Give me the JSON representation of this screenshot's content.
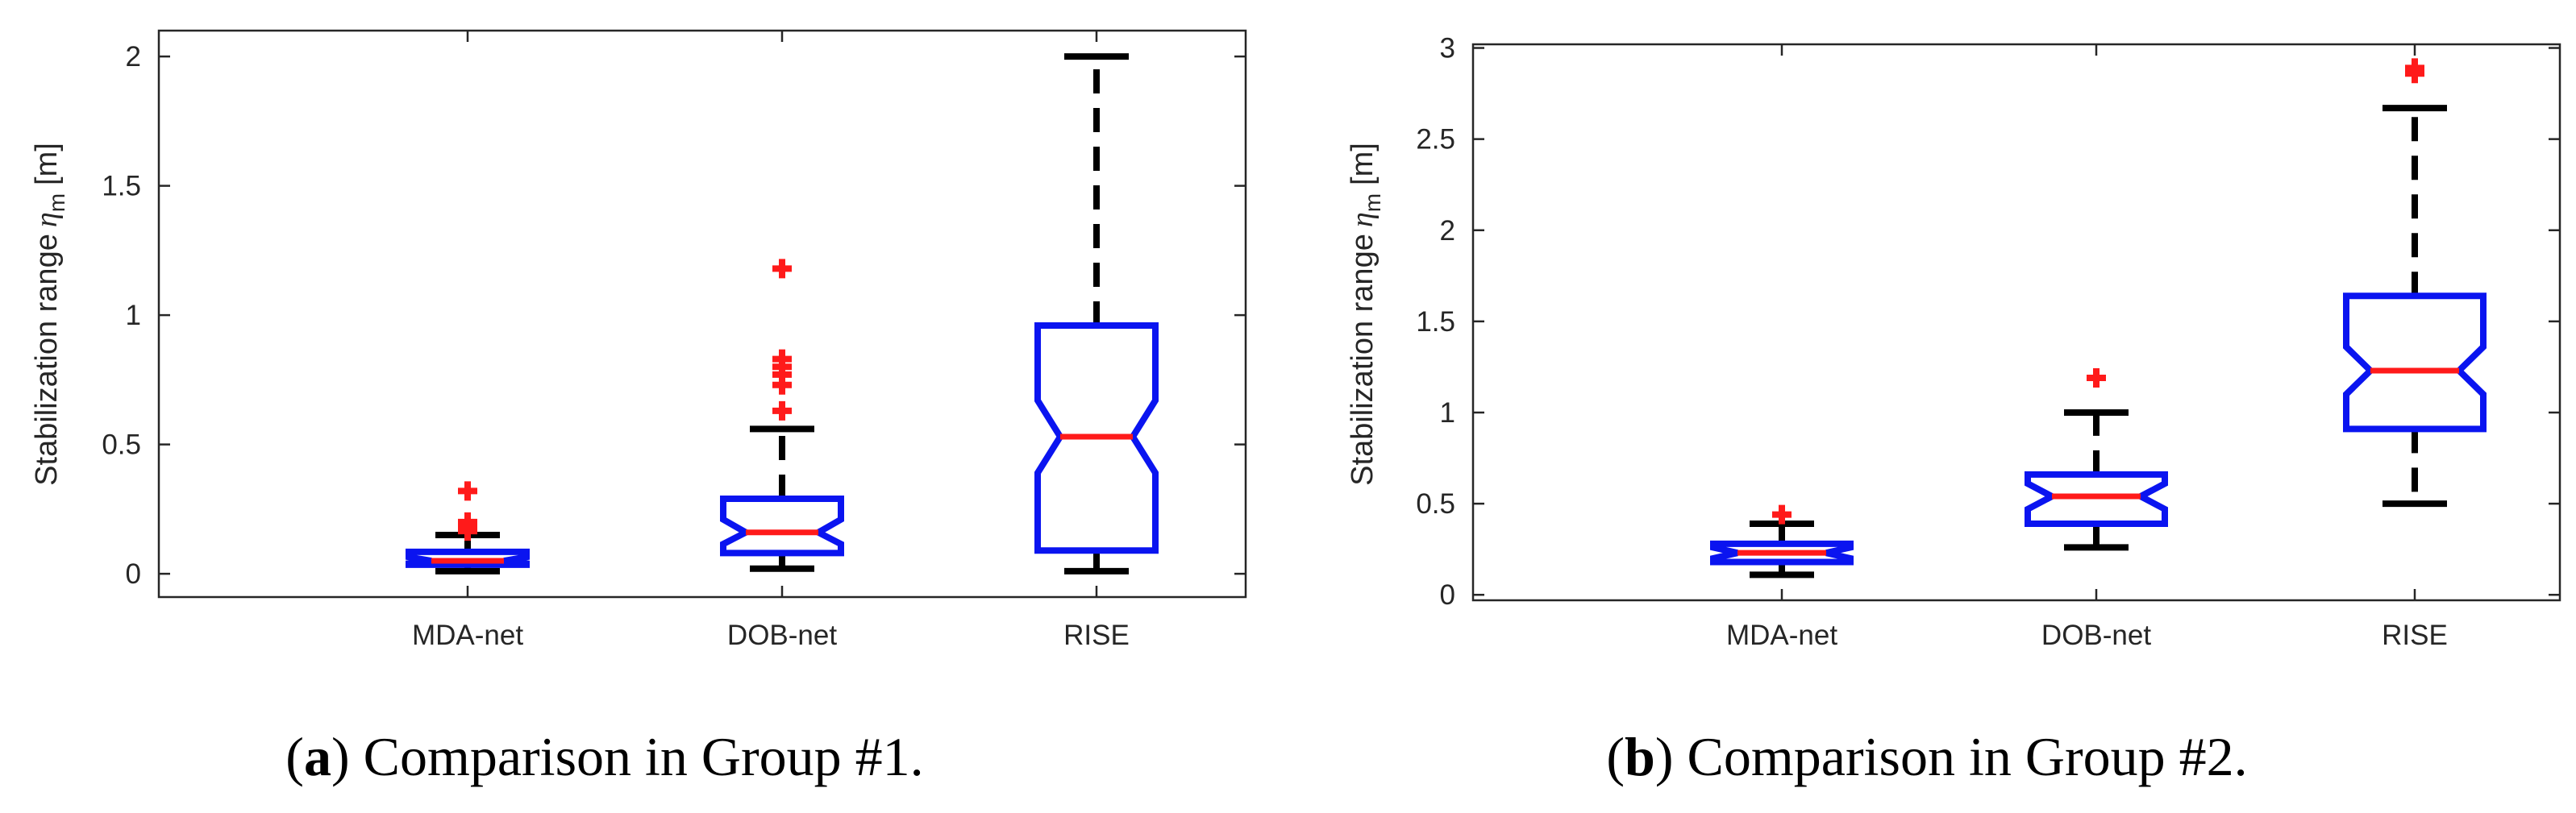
{
  "chart_data": [
    {
      "type": "box",
      "categories": [
        "MDA-net",
        "DOB-net",
        "RISE"
      ],
      "ylabel": "Stabilization range",
      "ylabel_symbol": "η",
      "ylabel_sub": "m",
      "ylabel_unit": "[m]",
      "ylim": [
        -0.09,
        2.1
      ],
      "yticks": [
        0,
        0.5,
        1,
        1.5,
        2
      ],
      "ytick_labels": [
        "0",
        "0.5",
        "1",
        "1.5",
        "2"
      ],
      "caption_label": "a",
      "caption_text": "Comparison in Group #1.",
      "boxes": [
        {
          "name": "MDA-net",
          "whisker_low": 0.01,
          "q1": 0.035,
          "notch_low": 0.04,
          "median": 0.05,
          "notch_high": 0.065,
          "q3": 0.085,
          "whisker_high": 0.15,
          "outliers": [
            0.165,
            0.18,
            0.2,
            0.32
          ]
        },
        {
          "name": "DOB-net",
          "whisker_low": 0.02,
          "q1": 0.08,
          "notch_low": 0.115,
          "median": 0.16,
          "notch_high": 0.21,
          "q3": 0.29,
          "whisker_high": 0.56,
          "outliers": [
            0.63,
            0.73,
            0.77,
            0.8,
            0.83,
            1.18
          ]
        },
        {
          "name": "RISE",
          "whisker_low": 0.01,
          "q1": 0.09,
          "notch_low": 0.39,
          "median": 0.53,
          "notch_high": 0.67,
          "q3": 0.96,
          "whisker_high": 2.0,
          "outliers": []
        }
      ]
    },
    {
      "type": "box",
      "categories": [
        "MDA-net",
        "DOB-net",
        "RISE"
      ],
      "ylabel": "Stabilization range",
      "ylabel_symbol": "η",
      "ylabel_sub": "m",
      "ylabel_unit": "[m]",
      "ylim": [
        -0.03,
        3.02
      ],
      "yticks": [
        0,
        0.5,
        1,
        1.5,
        2,
        2.5,
        3
      ],
      "ytick_labels": [
        "0",
        "0.5",
        "1",
        "1.5",
        "2",
        "2.5",
        "3"
      ],
      "caption_label": "b",
      "caption_text": "Comparison in Group #2.",
      "boxes": [
        {
          "name": "MDA-net",
          "whisker_low": 0.11,
          "q1": 0.18,
          "notch_low": 0.2,
          "median": 0.23,
          "notch_high": 0.26,
          "q3": 0.28,
          "whisker_high": 0.39,
          "outliers": [
            0.44
          ]
        },
        {
          "name": "DOB-net",
          "whisker_low": 0.26,
          "q1": 0.39,
          "notch_low": 0.47,
          "median": 0.54,
          "notch_high": 0.61,
          "q3": 0.66,
          "whisker_high": 1.0,
          "outliers": [
            1.19
          ]
        },
        {
          "name": "RISE",
          "whisker_low": 0.5,
          "q1": 0.91,
          "notch_low": 1.1,
          "median": 1.23,
          "notch_high": 1.36,
          "q3": 1.64,
          "whisker_high": 2.67,
          "outliers": [
            2.86,
            2.89
          ]
        }
      ]
    }
  ]
}
